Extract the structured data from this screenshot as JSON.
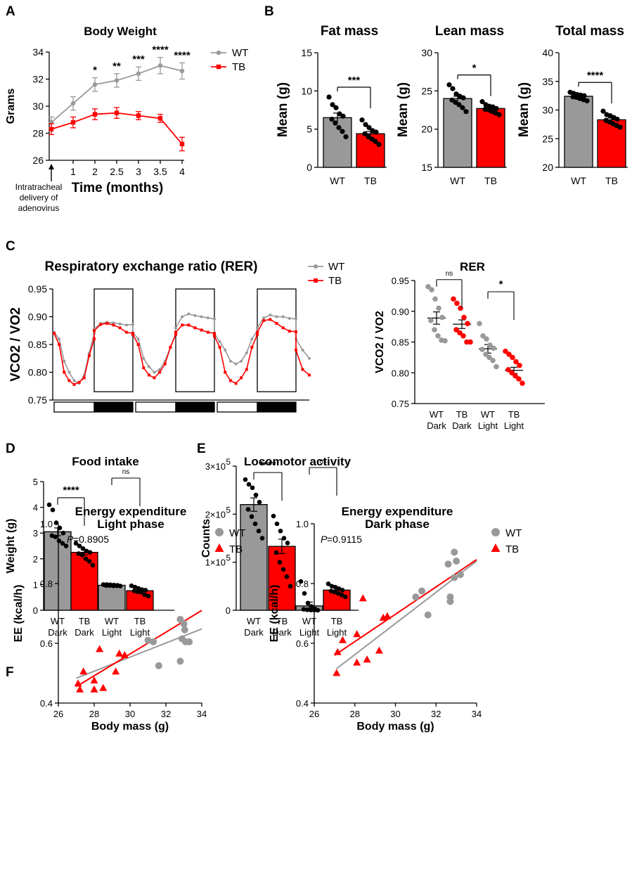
{
  "colors": {
    "wt": "#999999",
    "tb": "#ff0000",
    "ink": "#000000"
  },
  "panel_labels": [
    "A",
    "B",
    "C",
    "D",
    "E",
    "F"
  ],
  "chart_data": [
    {
      "id": "A",
      "type": "line",
      "title": "Body Weight",
      "xlabel": "Time (months)",
      "ylabel": "Grams",
      "x": [
        0,
        1,
        2,
        2.5,
        3,
        3.5,
        4
      ],
      "x_ticks": [
        "1",
        "2",
        "2.5",
        "3",
        "3.5",
        "4"
      ],
      "ylim": [
        26,
        34
      ],
      "y_ticks": [
        "26",
        "28",
        "30",
        "32",
        "34"
      ],
      "series": [
        {
          "name": "WT",
          "values": [
            28.8,
            30.2,
            31.6,
            31.9,
            32.4,
            33.0,
            32.6
          ],
          "err": [
            0.4,
            0.5,
            0.5,
            0.5,
            0.5,
            0.6,
            0.6
          ]
        },
        {
          "name": "TB",
          "values": [
            28.3,
            28.8,
            29.4,
            29.5,
            29.3,
            29.1,
            27.2
          ],
          "err": [
            0.4,
            0.4,
            0.4,
            0.4,
            0.3,
            0.3,
            0.5
          ]
        }
      ],
      "significance": [
        "",
        "",
        "*",
        "**",
        "***",
        "****",
        "****"
      ],
      "annotation": [
        "Intratracheal",
        "delivery of",
        "adenovirus"
      ],
      "legend": [
        "WT",
        "TB"
      ]
    },
    {
      "id": "B1",
      "type": "bar",
      "title": "Fat mass",
      "ylabel": "Mean (g)",
      "categories": [
        "WT",
        "TB"
      ],
      "values": [
        6.5,
        4.4
      ],
      "ylim": [
        0,
        15
      ],
      "y_ticks": [
        "0",
        "5",
        "10",
        "15"
      ],
      "points": [
        [
          9.2,
          8.2,
          7.8,
          7.0,
          6.7,
          6.3,
          5.8,
          5.2,
          4.7,
          4.0
        ],
        [
          6.2,
          5.6,
          5.2,
          4.8,
          4.6,
          4.4,
          4.0,
          3.7,
          3.4,
          3.0
        ]
      ],
      "err": [
        0.6,
        0.3
      ],
      "significance": "***"
    },
    {
      "id": "B2",
      "type": "bar",
      "title": "Lean mass",
      "ylabel": "Mean (g)",
      "categories": [
        "WT",
        "TB"
      ],
      "values": [
        24.0,
        22.7
      ],
      "ylim": [
        15,
        30
      ],
      "y_ticks": [
        "15",
        "20",
        "25",
        "30"
      ],
      "points": [
        [
          25.8,
          25.3,
          24.6,
          24.3,
          24.1,
          23.8,
          23.5,
          23.2,
          22.8,
          22.3
        ],
        [
          23.6,
          23.2,
          23.0,
          22.9,
          22.7,
          22.6,
          22.5,
          22.3,
          22.1,
          21.9
        ]
      ],
      "err": [
        0.3,
        0.2
      ],
      "significance": "*"
    },
    {
      "id": "B3",
      "type": "bar",
      "title": "Total mass",
      "ylabel": "Mean (g)",
      "categories": [
        "WT",
        "TB"
      ],
      "values": [
        32.4,
        28.3
      ],
      "ylim": [
        20,
        40
      ],
      "y_ticks": [
        "20",
        "25",
        "30",
        "35",
        "40"
      ],
      "points": [
        [
          33.1,
          32.9,
          32.7,
          32.6,
          32.5,
          32.3,
          32.2,
          32.0,
          31.8,
          31.6
        ],
        [
          29.8,
          29.2,
          29.0,
          28.7,
          28.4,
          28.2,
          27.9,
          27.6,
          27.3,
          27.0
        ]
      ],
      "err": [
        0.2,
        0.3
      ],
      "significance": "****"
    },
    {
      "id": "C1",
      "type": "line",
      "title": "Respiratory exchange ratio (RER)",
      "ylabel": "VCO2 / VO2",
      "ylim": [
        0.75,
        0.95
      ],
      "y_ticks": [
        "0.75",
        "0.80",
        "0.85",
        "0.90",
        "0.95"
      ],
      "x_cycle_anchors": [
        0,
        0.1,
        0.2,
        0.35,
        0.5,
        0.65,
        0.8,
        0.9,
        1.0
      ],
      "series": [
        {
          "name": "WT",
          "dark_phase": [
            [
              0.878,
              0.888,
              0.89,
              0.889,
              0.887,
              0.885,
              0.886
            ],
            [
              0.88,
              0.9,
              0.905,
              0.902,
              0.9,
              0.898,
              0.896
            ],
            [
              0.88,
              0.898,
              0.903,
              0.9,
              0.9,
              0.897,
              0.896
            ]
          ],
          "light_phase": [
            [
              0.872,
              0.86,
              0.82,
              0.8,
              0.785,
              0.78,
              0.795,
              0.835,
              0.87
            ],
            [
              0.872,
              0.86,
              0.825,
              0.81,
              0.8,
              0.805,
              0.82,
              0.845,
              0.87
            ],
            [
              0.87,
              0.855,
              0.84,
              0.82,
              0.815,
              0.82,
              0.835,
              0.86,
              0.875
            ],
            [
              0.86,
              0.84,
              0.825
            ]
          ]
        },
        {
          "name": "TB",
          "dark_phase": [
            [
              0.875,
              0.886,
              0.888,
              0.885,
              0.88,
              0.872,
              0.87
            ],
            [
              0.872,
              0.885,
              0.885,
              0.88,
              0.876,
              0.872,
              0.87
            ],
            [
              0.872,
              0.893,
              0.895,
              0.888,
              0.88,
              0.874,
              0.873
            ]
          ],
          "light_phase": [
            [
              0.87,
              0.85,
              0.8,
              0.785,
              0.778,
              0.782,
              0.79,
              0.83,
              0.86
            ],
            [
              0.868,
              0.85,
              0.808,
              0.795,
              0.79,
              0.8,
              0.815,
              0.845,
              0.868
            ],
            [
              0.865,
              0.845,
              0.8,
              0.785,
              0.78,
              0.79,
              0.805,
              0.845,
              0.868
            ],
            [
              0.84,
              0.805,
              0.795
            ]
          ]
        }
      ],
      "light_dark_bar": [
        "light",
        "dark",
        "light",
        "dark",
        "light",
        "dark"
      ],
      "legend": [
        "WT",
        "TB"
      ]
    },
    {
      "id": "C2",
      "type": "scatter",
      "title": "RER",
      "ylabel": "VCO2 / VO2",
      "categories": [
        [
          "WT",
          "Dark"
        ],
        [
          "TB",
          "Dark"
        ],
        [
          "WT",
          "Light"
        ],
        [
          "TB",
          "Light"
        ]
      ],
      "means": [
        0.889,
        0.879,
        0.839,
        0.804
      ],
      "err": [
        0.01,
        0.007,
        0.007,
        0.005
      ],
      "points": [
        [
          0.94,
          0.935,
          0.92,
          0.905,
          0.89,
          0.885,
          0.87,
          0.86,
          0.853,
          0.852
        ],
        [
          0.92,
          0.913,
          0.905,
          0.89,
          0.88,
          0.87,
          0.865,
          0.86,
          0.85,
          0.85
        ],
        [
          0.88,
          0.86,
          0.855,
          0.845,
          0.84,
          0.838,
          0.83,
          0.825,
          0.82,
          0.81
        ],
        [
          0.835,
          0.83,
          0.825,
          0.818,
          0.812,
          0.805,
          0.8,
          0.795,
          0.79,
          0.783
        ]
      ],
      "ylim": [
        0.75,
        0.95
      ],
      "y_ticks": [
        "0.75",
        "0.80",
        "0.85",
        "0.90",
        "0.95"
      ],
      "significance": [
        {
          "pair": [
            0,
            1
          ],
          "label": "ns"
        },
        {
          "pair": [
            2,
            3
          ],
          "label": "*"
        }
      ]
    },
    {
      "id": "D",
      "type": "bar",
      "title": "Food intake",
      "ylabel": "Weight (g)",
      "categories": [
        [
          "WT",
          "Dark"
        ],
        [
          "TB",
          "Dark"
        ],
        [
          "WT",
          "Light"
        ],
        [
          "TB",
          "Light"
        ]
      ],
      "values": [
        3.05,
        2.25,
        0.97,
        0.76
      ],
      "err": [
        0.15,
        0.1,
        0.02,
        0.04
      ],
      "points": [
        [
          4.1,
          3.9,
          3.4,
          3.2,
          3.0,
          2.9,
          2.85,
          2.7,
          2.6,
          2.5
        ],
        [
          2.6,
          2.5,
          2.4,
          2.3,
          2.25,
          2.2,
          2.15,
          2.0,
          1.9,
          1.75
        ],
        [
          1.0,
          1.0,
          0.99,
          0.98,
          0.97,
          0.96,
          0.96,
          0.95,
          0.95,
          0.94
        ],
        [
          0.95,
          0.9,
          0.85,
          0.8,
          0.78,
          0.75,
          0.72,
          0.7,
          0.6,
          0.55
        ]
      ],
      "ylim": [
        0,
        5
      ],
      "y_ticks": [
        "0",
        "1",
        "2",
        "3",
        "4",
        "5"
      ],
      "significance": [
        {
          "pair": [
            0,
            1
          ],
          "label": "****"
        },
        {
          "pair": [
            2,
            3
          ],
          "label": "ns"
        }
      ]
    },
    {
      "id": "E",
      "type": "bar",
      "title": "Locomotor activity",
      "ylabel": "Counts",
      "categories": [
        [
          "WT",
          "Dark"
        ],
        [
          "TB",
          "Dark"
        ],
        [
          "WT",
          "Light"
        ],
        [
          "TB",
          "Light"
        ]
      ],
      "values": [
        220000,
        133000,
        9000,
        42000
      ],
      "err": [
        14000,
        15000,
        8000,
        5000
      ],
      "points": [
        [
          272000,
          262000,
          255000,
          240000,
          225000,
          210000,
          195000,
          180000,
          165000,
          150000
        ],
        [
          196000,
          180000,
          165000,
          150000,
          140000,
          120000,
          100000,
          85000,
          70000,
          50000
        ],
        [
          60000,
          35000,
          15000,
          8000,
          3000,
          2000,
          1000,
          500,
          300,
          0
        ],
        [
          55000,
          50000,
          48000,
          45000,
          42000,
          40000,
          38000,
          35000,
          32000,
          28000
        ]
      ],
      "ylim": [
        0,
        300000
      ],
      "y_ticks": [
        "0",
        "1×10",
        "2×10",
        "3×10"
      ],
      "y_tick_exponent": "5",
      "significance": [
        {
          "pair": [
            0,
            1
          ],
          "label": "****"
        },
        {
          "pair": [
            2,
            3
          ],
          "label": "ns"
        }
      ]
    },
    {
      "id": "F1",
      "type": "scatter",
      "title": [
        "Energy expenditure",
        "Light phase"
      ],
      "xlabel": "Body mass (g)",
      "ylabel": "EE (kcal/h)",
      "xlim": [
        26,
        34
      ],
      "ylim": [
        0.4,
        1.0
      ],
      "x_ticks": [
        "26",
        "28",
        "30",
        "32",
        "34"
      ],
      "y_ticks": [
        "0.4",
        "0.6",
        "0.8",
        "1.0"
      ],
      "p_value": "=0.8905",
      "p_label": "P",
      "series": [
        {
          "name": "WT",
          "points": [
            [
              31.0,
              0.61
            ],
            [
              31.3,
              0.605
            ],
            [
              31.6,
              0.525
            ],
            [
              32.8,
              0.68
            ],
            [
              33.0,
              0.665
            ],
            [
              33.05,
              0.645
            ],
            [
              32.9,
              0.615
            ],
            [
              33.1,
              0.605
            ],
            [
              33.3,
              0.605
            ],
            [
              32.8,
              0.54
            ]
          ],
          "fit": [
            [
              27.0,
              0.483
            ],
            [
              34.0,
              0.648
            ]
          ]
        },
        {
          "name": "TB",
          "points": [
            [
              27.1,
              0.465
            ],
            [
              27.2,
              0.445
            ],
            [
              27.4,
              0.505
            ],
            [
              28.0,
              0.475
            ],
            [
              28.0,
              0.445
            ],
            [
              28.3,
              0.58
            ],
            [
              28.5,
              0.45
            ],
            [
              29.2,
              0.505
            ],
            [
              29.4,
              0.565
            ],
            [
              29.7,
              0.56
            ]
          ],
          "fit": [
            [
              27.0,
              0.455
            ],
            [
              34.0,
              0.71
            ]
          ]
        }
      ],
      "legend": [
        "WT",
        "TB"
      ]
    },
    {
      "id": "F2",
      "type": "scatter",
      "title": [
        "Energy expenditure",
        "Dark phase"
      ],
      "xlabel": "Body mass (g)",
      "ylabel": "EE (kcal/h)",
      "xlim": [
        26,
        34
      ],
      "ylim": [
        0.4,
        1.0
      ],
      "x_ticks": [
        "26",
        "28",
        "30",
        "32",
        "34"
      ],
      "y_ticks": [
        "0.4",
        "0.6",
        "0.8",
        "1.0"
      ],
      "p_value": "=0.9115",
      "p_label": "P",
      "series": [
        {
          "name": "WT",
          "points": [
            [
              31.0,
              0.755
            ],
            [
              31.3,
              0.775
            ],
            [
              31.6,
              0.695
            ],
            [
              32.6,
              0.865
            ],
            [
              32.9,
              0.905
            ],
            [
              33.0,
              0.875
            ],
            [
              33.2,
              0.83
            ],
            [
              32.9,
              0.82
            ],
            [
              32.7,
              0.755
            ],
            [
              32.7,
              0.74
            ]
          ],
          "fit": [
            [
              27.1,
              0.515
            ],
            [
              34.0,
              0.875
            ]
          ]
        },
        {
          "name": "TB",
          "points": [
            [
              27.1,
              0.5
            ],
            [
              27.15,
              0.57
            ],
            [
              27.4,
              0.61
            ],
            [
              28.1,
              0.63
            ],
            [
              28.1,
              0.535
            ],
            [
              28.4,
              0.75
            ],
            [
              28.6,
              0.545
            ],
            [
              29.2,
              0.575
            ],
            [
              29.4,
              0.685
            ],
            [
              29.6,
              0.69
            ]
          ],
          "fit": [
            [
              27.0,
              0.56
            ],
            [
              34.0,
              0.88
            ]
          ]
        }
      ],
      "legend": [
        "WT",
        "TB"
      ]
    }
  ]
}
